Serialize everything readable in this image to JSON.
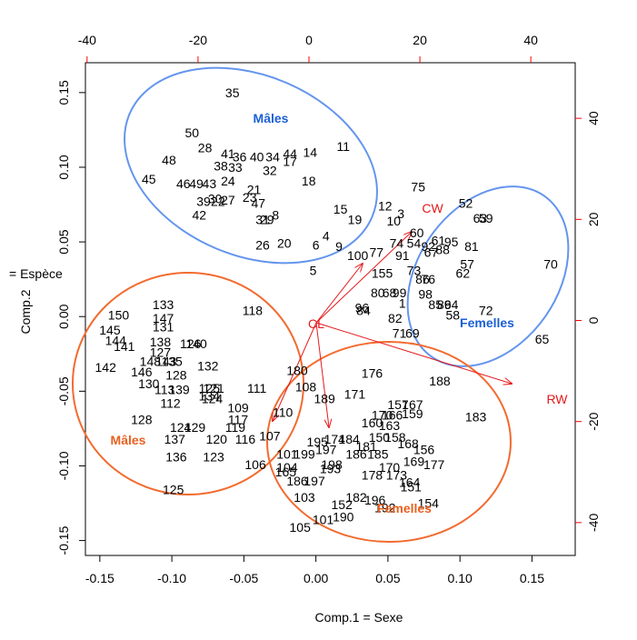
{
  "chart_data": {
    "type": "scatter",
    "title": "",
    "xlabel": "Comp.1   = Sexe",
    "ylabel": "Comp.2",
    "ylabel_side": "= Espèce",
    "xlim": [
      -0.16,
      0.18
    ],
    "ylim": [
      -0.16,
      0.17
    ],
    "xticks": [
      -0.15,
      -0.1,
      -0.05,
      0.0,
      0.05,
      0.1,
      0.15
    ],
    "xtick_labels": [
      "-0.15",
      "-0.10",
      "-0.05",
      "0.00",
      "0.05",
      "0.10",
      "0.15"
    ],
    "yticks": [
      -0.15,
      -0.1,
      -0.05,
      0.0,
      0.05,
      0.1,
      0.15
    ],
    "ytick_labels": [
      "-0.15",
      "-0.10",
      "-0.05",
      "0.00",
      "0.05",
      "0.10",
      "0.15"
    ],
    "secondary_xlim": [
      -40.3,
      48
    ],
    "secondary_xticks": [
      -40,
      -20,
      0,
      20,
      40
    ],
    "secondary_xtick_labels": [
      "-40",
      "-20",
      "0",
      "20",
      "40"
    ],
    "secondary_ylim": [
      -46.5,
      51
    ],
    "secondary_yticks": [
      -40,
      -20,
      0,
      20,
      40
    ],
    "secondary_ytick_labels": [
      "-40",
      "-20",
      "0",
      "20",
      "40"
    ],
    "colors": {
      "axis": "#000000",
      "secondary_axis": "#ff0000",
      "blue_group": "#6495ed",
      "blue_label": "#1a5fd6",
      "orange_group": "#f26b2f",
      "orange_label": "#e8601f",
      "vector": "#e41a1c"
    },
    "points": [
      {
        "label": "35",
        "x": -0.058,
        "y": 0.15
      },
      {
        "label": "50",
        "x": -0.086,
        "y": 0.123
      },
      {
        "label": "28",
        "x": -0.077,
        "y": 0.113
      },
      {
        "label": "48",
        "x": -0.102,
        "y": 0.105
      },
      {
        "label": "41",
        "x": -0.061,
        "y": 0.109
      },
      {
        "label": "36",
        "x": -0.053,
        "y": 0.107
      },
      {
        "label": "40",
        "x": -0.041,
        "y": 0.107
      },
      {
        "label": "34",
        "x": -0.03,
        "y": 0.107
      },
      {
        "label": "44",
        "x": -0.018,
        "y": 0.109
      },
      {
        "label": "14",
        "x": -0.004,
        "y": 0.11
      },
      {
        "label": "11",
        "x": 0.019,
        "y": 0.114
      },
      {
        "label": "38",
        "x": -0.066,
        "y": 0.101
      },
      {
        "label": "33",
        "x": -0.056,
        "y": 0.1
      },
      {
        "label": "17",
        "x": -0.018,
        "y": 0.104
      },
      {
        "label": "32",
        "x": -0.032,
        "y": 0.098
      },
      {
        "label": "45",
        "x": -0.116,
        "y": 0.092
      },
      {
        "label": "46",
        "x": -0.092,
        "y": 0.089
      },
      {
        "label": "49",
        "x": -0.083,
        "y": 0.089
      },
      {
        "label": "43",
        "x": -0.074,
        "y": 0.089
      },
      {
        "label": "24",
        "x": -0.061,
        "y": 0.091
      },
      {
        "label": "18",
        "x": -0.005,
        "y": 0.091
      },
      {
        "label": "21",
        "x": -0.043,
        "y": 0.085
      },
      {
        "label": "30",
        "x": -0.07,
        "y": 0.079
      },
      {
        "label": "39",
        "x": -0.078,
        "y": 0.077
      },
      {
        "label": "22",
        "x": -0.068,
        "y": 0.077
      },
      {
        "label": "27",
        "x": -0.061,
        "y": 0.078
      },
      {
        "label": "23",
        "x": -0.046,
        "y": 0.08
      },
      {
        "label": "47",
        "x": -0.04,
        "y": 0.076
      },
      {
        "label": "42",
        "x": -0.081,
        "y": 0.068
      },
      {
        "label": "31",
        "x": -0.037,
        "y": 0.065
      },
      {
        "label": "29",
        "x": -0.034,
        "y": 0.065
      },
      {
        "label": "8",
        "x": -0.028,
        "y": 0.068
      },
      {
        "label": "15",
        "x": 0.017,
        "y": 0.072
      },
      {
        "label": "19",
        "x": 0.027,
        "y": 0.065
      },
      {
        "label": "12",
        "x": 0.048,
        "y": 0.074
      },
      {
        "label": "3",
        "x": 0.059,
        "y": 0.069
      },
      {
        "label": "10",
        "x": 0.054,
        "y": 0.064
      },
      {
        "label": "75",
        "x": 0.071,
        "y": 0.087
      },
      {
        "label": "52",
        "x": 0.104,
        "y": 0.076
      },
      {
        "label": "63",
        "x": 0.114,
        "y": 0.066
      },
      {
        "label": "59",
        "x": 0.118,
        "y": 0.066
      },
      {
        "label": "4",
        "x": 0.007,
        "y": 0.054
      },
      {
        "label": "6",
        "x": 0.0,
        "y": 0.048
      },
      {
        "label": "9",
        "x": 0.016,
        "y": 0.047
      },
      {
        "label": "26",
        "x": -0.037,
        "y": 0.048
      },
      {
        "label": "20",
        "x": -0.022,
        "y": 0.049
      },
      {
        "label": "60",
        "x": 0.07,
        "y": 0.056
      },
      {
        "label": "54",
        "x": 0.068,
        "y": 0.049
      },
      {
        "label": "74",
        "x": 0.056,
        "y": 0.049
      },
      {
        "label": "61",
        "x": 0.085,
        "y": 0.051
      },
      {
        "label": "95",
        "x": 0.094,
        "y": 0.05
      },
      {
        "label": "92",
        "x": 0.078,
        "y": 0.047
      },
      {
        "label": "88",
        "x": 0.088,
        "y": 0.045
      },
      {
        "label": "81",
        "x": 0.108,
        "y": 0.047
      },
      {
        "label": "100",
        "x": 0.029,
        "y": 0.041
      },
      {
        "label": "77",
        "x": 0.042,
        "y": 0.043
      },
      {
        "label": "91",
        "x": 0.06,
        "y": 0.041
      },
      {
        "label": "67",
        "x": 0.08,
        "y": 0.043
      },
      {
        "label": "57",
        "x": 0.105,
        "y": 0.035
      },
      {
        "label": "62",
        "x": 0.102,
        "y": 0.029
      },
      {
        "label": "70",
        "x": 0.163,
        "y": 0.035
      },
      {
        "label": "5",
        "x": -0.002,
        "y": 0.031
      },
      {
        "label": "73",
        "x": 0.068,
        "y": 0.031
      },
      {
        "label": "155",
        "x": 0.046,
        "y": 0.029
      },
      {
        "label": "86",
        "x": 0.074,
        "y": 0.025
      },
      {
        "label": "76",
        "x": 0.078,
        "y": 0.025
      },
      {
        "label": "98",
        "x": 0.076,
        "y": 0.015
      },
      {
        "label": "85",
        "x": 0.083,
        "y": 0.008
      },
      {
        "label": "89",
        "x": 0.089,
        "y": 0.008
      },
      {
        "label": "64",
        "x": 0.094,
        "y": 0.008
      },
      {
        "label": "58",
        "x": 0.095,
        "y": 0.001
      },
      {
        "label": "72",
        "x": 0.118,
        "y": 0.004
      },
      {
        "label": "80",
        "x": 0.043,
        "y": 0.016
      },
      {
        "label": "99",
        "x": 0.058,
        "y": 0.016
      },
      {
        "label": "68",
        "x": 0.051,
        "y": 0.016
      },
      {
        "label": "82",
        "x": 0.055,
        "y": -0.001
      },
      {
        "label": "84",
        "x": 0.033,
        "y": 0.004
      },
      {
        "label": "96",
        "x": 0.032,
        "y": 0.006
      },
      {
        "label": "1",
        "x": 0.06,
        "y": 0.009
      },
      {
        "label": "71",
        "x": 0.058,
        "y": -0.011
      },
      {
        "label": "69",
        "x": 0.067,
        "y": -0.011
      },
      {
        "label": "133",
        "x": -0.106,
        "y": 0.008
      },
      {
        "label": "150",
        "x": -0.137,
        "y": 0.001
      },
      {
        "label": "147",
        "x": -0.106,
        "y": -0.001
      },
      {
        "label": "131",
        "x": -0.106,
        "y": -0.007
      },
      {
        "label": "145",
        "x": -0.143,
        "y": -0.009
      },
      {
        "label": "144",
        "x": -0.139,
        "y": -0.016
      },
      {
        "label": "141",
        "x": -0.133,
        "y": -0.02
      },
      {
        "label": "138",
        "x": -0.108,
        "y": -0.017
      },
      {
        "label": "126",
        "x": -0.087,
        "y": -0.018
      },
      {
        "label": "140",
        "x": -0.083,
        "y": -0.018
      },
      {
        "label": "127",
        "x": -0.108,
        "y": -0.024
      },
      {
        "label": "148",
        "x": -0.115,
        "y": -0.03
      },
      {
        "label": "143",
        "x": -0.104,
        "y": -0.03
      },
      {
        "label": "135",
        "x": -0.1,
        "y": -0.03
      },
      {
        "label": "142",
        "x": -0.146,
        "y": -0.034
      },
      {
        "label": "146",
        "x": -0.121,
        "y": -0.037
      },
      {
        "label": "128",
        "x": -0.097,
        "y": -0.039
      },
      {
        "label": "132",
        "x": -0.075,
        "y": -0.033
      },
      {
        "label": "130",
        "x": -0.116,
        "y": -0.045
      },
      {
        "label": "113",
        "x": -0.105,
        "y": -0.049
      },
      {
        "label": "139",
        "x": -0.095,
        "y": -0.049
      },
      {
        "label": "125",
        "x": -0.074,
        "y": -0.048
      },
      {
        "label": "121",
        "x": -0.071,
        "y": -0.048
      },
      {
        "label": "134",
        "x": -0.074,
        "y": -0.053
      },
      {
        "label": "124",
        "x": -0.072,
        "y": -0.055
      },
      {
        "label": "112",
        "x": -0.101,
        "y": -0.058
      },
      {
        "label": "118",
        "x": -0.044,
        "y": 0.004
      },
      {
        "label": "111",
        "x": -0.041,
        "y": -0.048
      },
      {
        "label": "109",
        "x": -0.054,
        "y": -0.061
      },
      {
        "label": "110",
        "x": -0.023,
        "y": -0.064
      },
      {
        "label": "117",
        "x": -0.054,
        "y": -0.069
      },
      {
        "label": "119",
        "x": -0.056,
        "y": -0.074
      },
      {
        "label": "116",
        "x": -0.049,
        "y": -0.082
      },
      {
        "label": "107",
        "x": -0.032,
        "y": -0.08
      },
      {
        "label": "128b",
        "x": -0.121,
        "y": -0.069
      },
      {
        "label": "124b",
        "x": -0.094,
        "y": -0.074
      },
      {
        "label": "129",
        "x": -0.084,
        "y": -0.074
      },
      {
        "label": "137",
        "x": -0.098,
        "y": -0.082
      },
      {
        "label": "120",
        "x": -0.069,
        "y": -0.082
      },
      {
        "label": "136",
        "x": -0.097,
        "y": -0.094
      },
      {
        "label": "123",
        "x": -0.071,
        "y": -0.094
      },
      {
        "label": "106",
        "x": -0.042,
        "y": -0.099
      },
      {
        "label": "125b",
        "x": -0.099,
        "y": -0.116
      },
      {
        "label": "180",
        "x": -0.013,
        "y": -0.036
      },
      {
        "label": "108",
        "x": -0.007,
        "y": -0.047
      },
      {
        "label": "189",
        "x": 0.006,
        "y": -0.055
      },
      {
        "label": "176",
        "x": 0.039,
        "y": -0.038
      },
      {
        "label": "188",
        "x": 0.086,
        "y": -0.043
      },
      {
        "label": "171",
        "x": 0.027,
        "y": -0.052
      },
      {
        "label": "157",
        "x": 0.057,
        "y": -0.059
      },
      {
        "label": "167",
        "x": 0.067,
        "y": -0.059
      },
      {
        "label": "183",
        "x": 0.111,
        "y": -0.067
      },
      {
        "label": "170",
        "x": 0.046,
        "y": -0.066
      },
      {
        "label": "166",
        "x": 0.053,
        "y": -0.066
      },
      {
        "label": "159",
        "x": 0.067,
        "y": -0.065
      },
      {
        "label": "160",
        "x": 0.039,
        "y": -0.071
      },
      {
        "label": "163",
        "x": 0.051,
        "y": -0.073
      },
      {
        "label": "150b",
        "x": 0.044,
        "y": -0.081
      },
      {
        "label": "158",
        "x": 0.055,
        "y": -0.081
      },
      {
        "label": "168",
        "x": 0.064,
        "y": -0.085
      },
      {
        "label": "156",
        "x": 0.075,
        "y": -0.089
      },
      {
        "label": "195",
        "x": 0.001,
        "y": -0.084
      },
      {
        "label": "174",
        "x": 0.013,
        "y": -0.082
      },
      {
        "label": "184",
        "x": 0.023,
        "y": -0.082
      },
      {
        "label": "181",
        "x": 0.035,
        "y": -0.087
      },
      {
        "label": "101",
        "x": -0.02,
        "y": -0.092
      },
      {
        "label": "199",
        "x": -0.008,
        "y": -0.092
      },
      {
        "label": "197b",
        "x": 0.007,
        "y": -0.089
      },
      {
        "label": "186",
        "x": 0.028,
        "y": -0.092
      },
      {
        "label": "185",
        "x": 0.043,
        "y": -0.092
      },
      {
        "label": "169",
        "x": 0.068,
        "y": -0.097
      },
      {
        "label": "177",
        "x": 0.082,
        "y": -0.099
      },
      {
        "label": "170b",
        "x": 0.051,
        "y": -0.101
      },
      {
        "label": "165",
        "x": -0.021,
        "y": -0.104
      },
      {
        "label": "104",
        "x": -0.02,
        "y": -0.101
      },
      {
        "label": "198",
        "x": 0.011,
        "y": -0.099
      },
      {
        "label": "193",
        "x": 0.01,
        "y": -0.102
      },
      {
        "label": "186b",
        "x": -0.013,
        "y": -0.11
      },
      {
        "label": "197",
        "x": -0.001,
        "y": -0.11
      },
      {
        "label": "178",
        "x": 0.039,
        "y": -0.106
      },
      {
        "label": "173",
        "x": 0.056,
        "y": -0.106
      },
      {
        "label": "164",
        "x": 0.065,
        "y": -0.111
      },
      {
        "label": "151",
        "x": 0.066,
        "y": -0.114
      },
      {
        "label": "103",
        "x": -0.008,
        "y": -0.121
      },
      {
        "label": "182",
        "x": 0.028,
        "y": -0.121
      },
      {
        "label": "196",
        "x": 0.041,
        "y": -0.123
      },
      {
        "label": "154",
        "x": 0.078,
        "y": -0.125
      },
      {
        "label": "152",
        "x": 0.018,
        "y": -0.126
      },
      {
        "label": "192",
        "x": 0.048,
        "y": -0.128
      },
      {
        "label": "190",
        "x": 0.019,
        "y": -0.134
      },
      {
        "label": "101b",
        "x": 0.005,
        "y": -0.136
      },
      {
        "label": "105",
        "x": -0.011,
        "y": -0.141
      },
      {
        "label": "65",
        "x": 0.157,
        "y": -0.015
      }
    ],
    "vector_labels": [
      {
        "label": "CW",
        "x": 0.079,
        "y": 0.089
      },
      {
        "label": "CL",
        "x": 0.0,
        "y": 0.0
      },
      {
        "label": "RW",
        "x": 0.164,
        "y": -0.06
      }
    ],
    "groups": [
      {
        "name": "Mâles",
        "cx": 0.0,
        "cy": 0.0,
        "label_color": "blue"
      },
      {
        "name": "Femelles",
        "cx": 0.0,
        "cy": 0.0,
        "label_color": "blue"
      },
      {
        "name": "Mâles",
        "cx": 0.0,
        "cy": 0.0,
        "label_color": "orange"
      },
      {
        "name": "Femelles",
        "cx": 0.0,
        "cy": 0.0,
        "label_color": "orange"
      }
    ]
  }
}
